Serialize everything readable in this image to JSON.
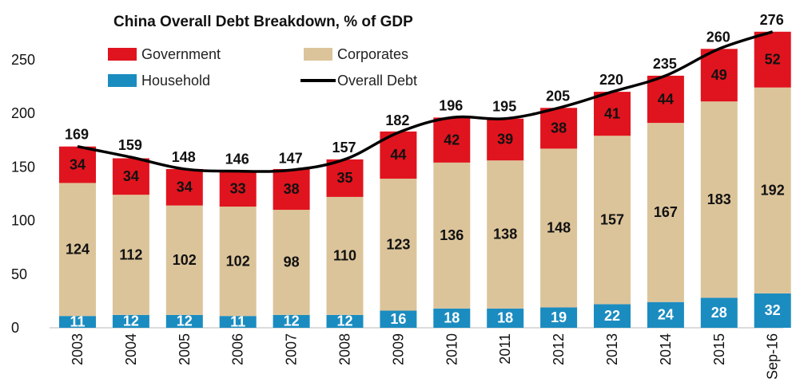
{
  "chart_data": {
    "type": "bar",
    "stacked": true,
    "title": "China Overall Debt Breakdown, % of GDP",
    "xlabel": "",
    "ylabel": "",
    "ylim": [
      0,
      276
    ],
    "yticks": [
      0,
      50,
      100,
      150,
      200,
      250
    ],
    "categories": [
      "2003",
      "2004",
      "2005",
      "2006",
      "2007",
      "2008",
      "2009",
      "2010",
      "2011",
      "2012",
      "2013",
      "2014",
      "2015",
      "Sep-16"
    ],
    "series": [
      {
        "name": "Household",
        "color": "#1b8cc0",
        "values": [
          11,
          12,
          12,
          11,
          12,
          12,
          16,
          18,
          18,
          19,
          22,
          24,
          28,
          32
        ]
      },
      {
        "name": "Corporates",
        "color": "#dcc49a",
        "values": [
          124,
          112,
          102,
          102,
          98,
          110,
          123,
          136,
          138,
          148,
          157,
          167,
          183,
          192
        ]
      },
      {
        "name": "Government",
        "color": "#e0141e",
        "values": [
          34,
          34,
          34,
          33,
          38,
          35,
          44,
          42,
          39,
          38,
          41,
          44,
          49,
          52
        ]
      }
    ],
    "line": {
      "name": "Overall Debt",
      "color": "#000000",
      "values": [
        169,
        159,
        148,
        146,
        147,
        157,
        182,
        196,
        195,
        205,
        220,
        235,
        260,
        276
      ]
    },
    "legend": {
      "placement": "top-left",
      "items": [
        {
          "label": "Government",
          "color": "#e0141e",
          "kind": "box"
        },
        {
          "label": "Corporates",
          "color": "#dcc49a",
          "kind": "box"
        },
        {
          "label": "Household",
          "color": "#1b8cc0",
          "kind": "box"
        },
        {
          "label": "Overall Debt",
          "color": "#000000",
          "kind": "line"
        }
      ]
    },
    "grid": false
  }
}
